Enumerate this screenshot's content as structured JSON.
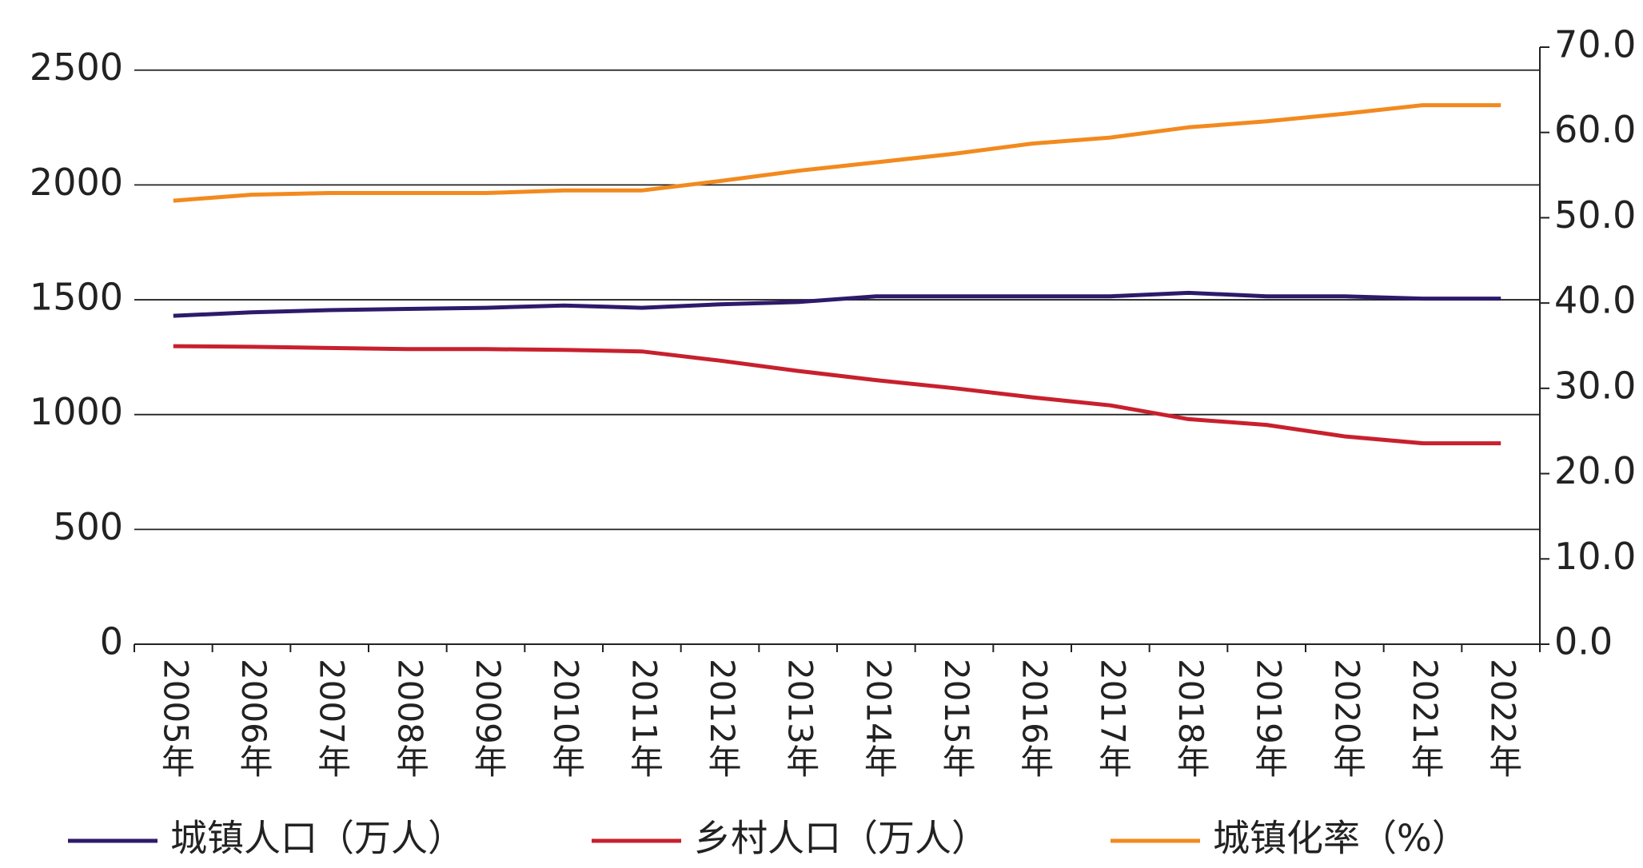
{
  "chart_data": {
    "type": "line",
    "categories": [
      "2005年",
      "2006年",
      "2007年",
      "2008年",
      "2009年",
      "2010年",
      "2011年",
      "2012年",
      "2013年",
      "2014年",
      "2015年",
      "2016年",
      "2017年",
      "2018年",
      "2019年",
      "2020年",
      "2021年",
      "2022年"
    ],
    "series": [
      {
        "name": "城镇人口（万人）",
        "color": "#2e1a6b",
        "values": [
          1430,
          1445,
          1455,
          1460,
          1465,
          1475,
          1465,
          1480,
          1490,
          1515,
          1515,
          1515,
          1515,
          1530,
          1515,
          1515,
          1505,
          1505
        ]
      },
      {
        "name": "乡村人口（万人）",
        "color": "#c8202e",
        "values": [
          1298,
          1295,
          1290,
          1285,
          1285,
          1282,
          1275,
          1235,
          1190,
          1150,
          1115,
          1075,
          1040,
          980,
          955,
          905,
          875,
          875
        ]
      },
      {
        "name": "城镇化率（%）",
        "color": "#f28a1e",
        "axis": "y2",
        "values": [
          52.0,
          52.7,
          52.9,
          52.9,
          52.9,
          53.2,
          53.2,
          54.3,
          55.5,
          56.5,
          57.5,
          58.7,
          59.4,
          60.6,
          61.3,
          62.2,
          63.2,
          63.2
        ]
      }
    ],
    "ylim": [
      0,
      2600
    ],
    "yticks": [
      0,
      500,
      1000,
      1500,
      2000,
      2500
    ],
    "y2lim": [
      0,
      70
    ],
    "y2ticks": [
      {
        "value": 0,
        "label": "0.0"
      },
      {
        "value": 10,
        "label": "10.0"
      },
      {
        "value": 20,
        "label": "20.0"
      },
      {
        "value": 30,
        "label": "30.0"
      },
      {
        "value": 40,
        "label": "40.0"
      },
      {
        "value": 50,
        "label": "50.0"
      },
      {
        "value": 60,
        "label": "60.0"
      },
      {
        "value": 70,
        "label": "70.0"
      }
    ],
    "grid": true,
    "legend": "bottom"
  }
}
